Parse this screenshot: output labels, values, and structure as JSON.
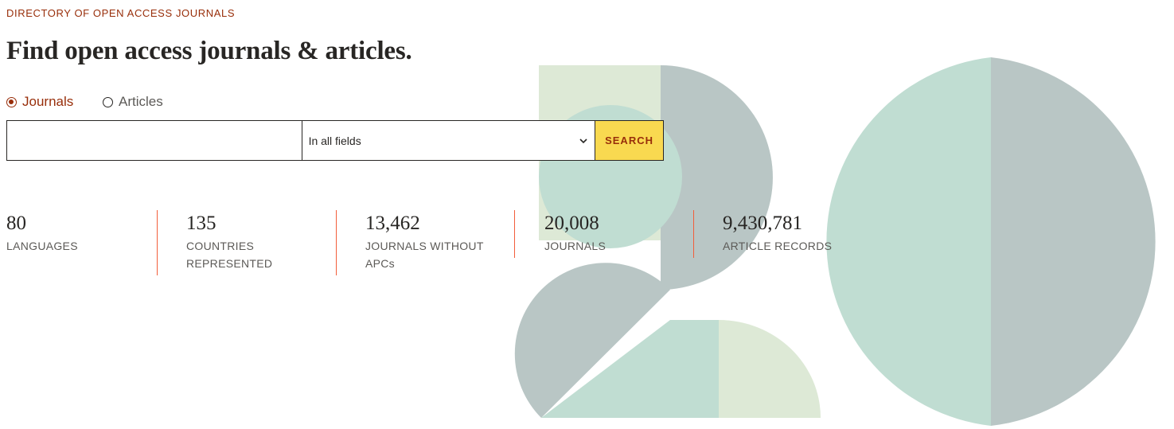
{
  "header": {
    "eyebrow": "DIRECTORY OF OPEN ACCESS JOURNALS",
    "headline": "Find open access journals & articles."
  },
  "search": {
    "types": [
      {
        "label": "Journals",
        "checked": true
      },
      {
        "label": "Articles",
        "checked": false
      }
    ],
    "input_value": "",
    "field_select": "In all fields",
    "button_label": "SEARCH"
  },
  "stats": [
    {
      "value": "80",
      "label": "LANGUAGES"
    },
    {
      "value": "135",
      "label": "COUNTRIES REPRESENTED"
    },
    {
      "value": "13,462",
      "label": "JOURNALS WITHOUT APCs"
    },
    {
      "value": "20,008",
      "label": "JOURNALS"
    },
    {
      "value": "9,430,781",
      "label": "ARTICLE RECORDS"
    }
  ],
  "theme": {
    "accent": "#982e0a",
    "divider": "#f25e3b",
    "button_bg": "#f9d950",
    "shape_gray": "#b9c6c5",
    "shape_mint": "#c0ddd2",
    "shape_pale": "#dde9d6"
  }
}
